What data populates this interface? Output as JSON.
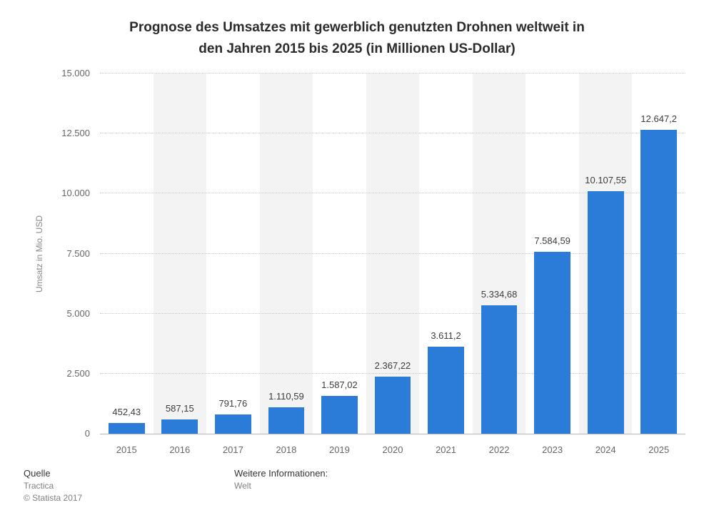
{
  "title": {
    "line1": "Prognose des Umsatzes mit gewerblich genutzten Drohnen weltweit in",
    "line2": "den Jahren 2015 bis 2025 (in Millionen US-Dollar)"
  },
  "chart_data": {
    "type": "bar",
    "title": "Prognose des Umsatzes mit gewerblich genutzten Drohnen weltweit in den Jahren 2015 bis 2025 (in Millionen US-Dollar)",
    "categories": [
      "2015",
      "2016",
      "2017",
      "2018",
      "2019",
      "2020",
      "2021",
      "2022",
      "2023",
      "2024",
      "2025"
    ],
    "values": [
      452.43,
      587.15,
      791.76,
      1110.59,
      1587.02,
      2367.22,
      3611.2,
      5334.68,
      7584.59,
      10107.55,
      12647.2
    ],
    "value_labels": [
      "452,43",
      "587,15",
      "791,76",
      "1.110,59",
      "1.587,02",
      "2.367,22",
      "3.611,2",
      "5.334,68",
      "7.584,59",
      "10.107,55",
      "12.647,2"
    ],
    "xlabel": "",
    "ylabel": "Umsatz in Mio. USD",
    "ylim": [
      0,
      15000
    ],
    "yticks": [
      0,
      2500,
      5000,
      7500,
      10000,
      12500,
      15000
    ],
    "ytick_labels": [
      "0",
      "2.500",
      "5.000",
      "7.500",
      "10.000",
      "12.500",
      "15.000"
    ],
    "grid": true,
    "legend": false,
    "bar_color": "#2b7cd9",
    "band_color": "#f3f3f3"
  },
  "footer": {
    "source_label": "Quelle",
    "source_name": "Tractica",
    "copyright": "© Statista 2017",
    "info_label": "Weitere Informationen:",
    "info_value": "Welt"
  }
}
